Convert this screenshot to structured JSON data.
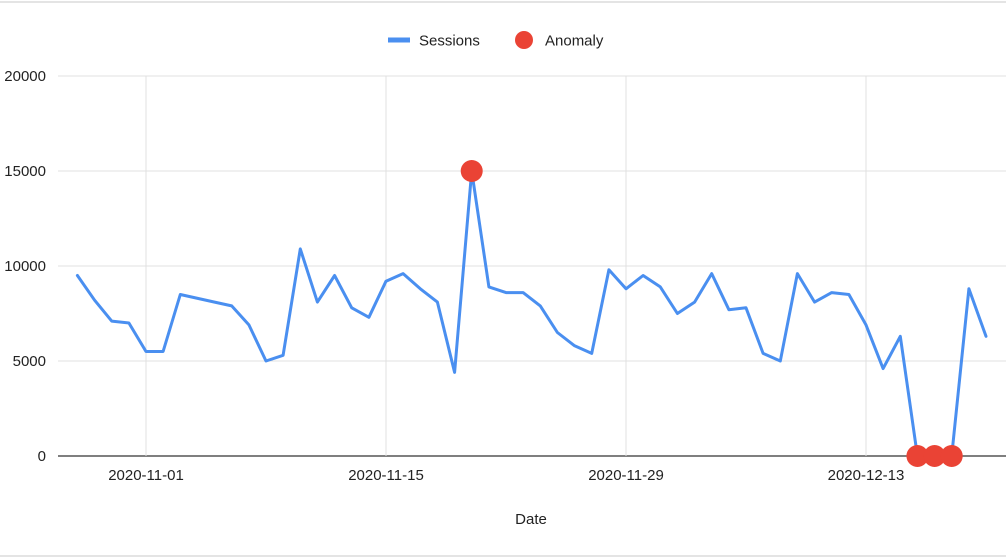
{
  "chart_data": {
    "type": "line",
    "xlabel": "Date",
    "ylabel": "",
    "ylim": [
      0,
      20000
    ],
    "yticks": [
      0,
      5000,
      10000,
      15000,
      20000
    ],
    "yticklabels": [
      "0",
      "5000",
      "10000",
      "15000",
      "20000"
    ],
    "xticks": [
      "2020-11-01",
      "2020-11-15",
      "2020-11-29",
      "2020-12-13"
    ],
    "xlim": [
      "2020-10-28",
      "2020-12-21"
    ],
    "grid": true,
    "legend_position": "top-center",
    "series": [
      {
        "name": "Sessions",
        "color": "#4a8ff0",
        "marker": "line",
        "x": [
          "2020-10-28",
          "2020-10-29",
          "2020-10-30",
          "2020-10-31",
          "2020-11-01",
          "2020-11-02",
          "2020-11-03",
          "2020-11-05",
          "2020-11-06",
          "2020-11-07",
          "2020-11-08",
          "2020-11-09",
          "2020-11-10",
          "2020-11-11",
          "2020-11-12",
          "2020-11-13",
          "2020-11-14",
          "2020-11-15",
          "2020-11-16",
          "2020-11-17",
          "2020-11-18",
          "2020-11-19",
          "2020-11-20",
          "2020-11-21",
          "2020-11-22",
          "2020-11-23",
          "2020-11-24",
          "2020-11-25",
          "2020-11-26",
          "2020-11-27",
          "2020-11-28",
          "2020-11-29",
          "2020-11-30",
          "2020-12-01",
          "2020-12-02",
          "2020-12-03",
          "2020-12-04",
          "2020-12-05",
          "2020-12-06",
          "2020-12-07",
          "2020-12-08",
          "2020-12-09",
          "2020-12-10",
          "2020-12-11",
          "2020-12-12",
          "2020-12-13",
          "2020-12-14",
          "2020-12-15",
          "2020-12-16",
          "2020-12-17",
          "2020-12-18",
          "2020-12-19",
          "2020-12-20"
        ],
        "values": [
          9500,
          8200,
          7100,
          7000,
          5500,
          5500,
          8500,
          8100,
          7900,
          6900,
          5000,
          5300,
          10900,
          8100,
          9500,
          7800,
          7300,
          9200,
          9600,
          8800,
          8100,
          4400,
          15000,
          8900,
          8600,
          8600,
          7900,
          6500,
          5800,
          5400,
          9800,
          8800,
          9500,
          8900,
          7500,
          8100,
          9600,
          7700,
          7800,
          5400,
          5000,
          9600,
          8100,
          8600,
          8500,
          6900,
          4600,
          6300,
          0,
          0,
          0,
          8800,
          6300
        ]
      },
      {
        "name": "Anomaly",
        "color": "#ea4335",
        "marker": "circle",
        "x": [
          "2020-11-20",
          "2020-12-16",
          "2020-12-17",
          "2020-12-18"
        ],
        "values": [
          15000,
          0,
          0,
          0
        ]
      }
    ]
  }
}
